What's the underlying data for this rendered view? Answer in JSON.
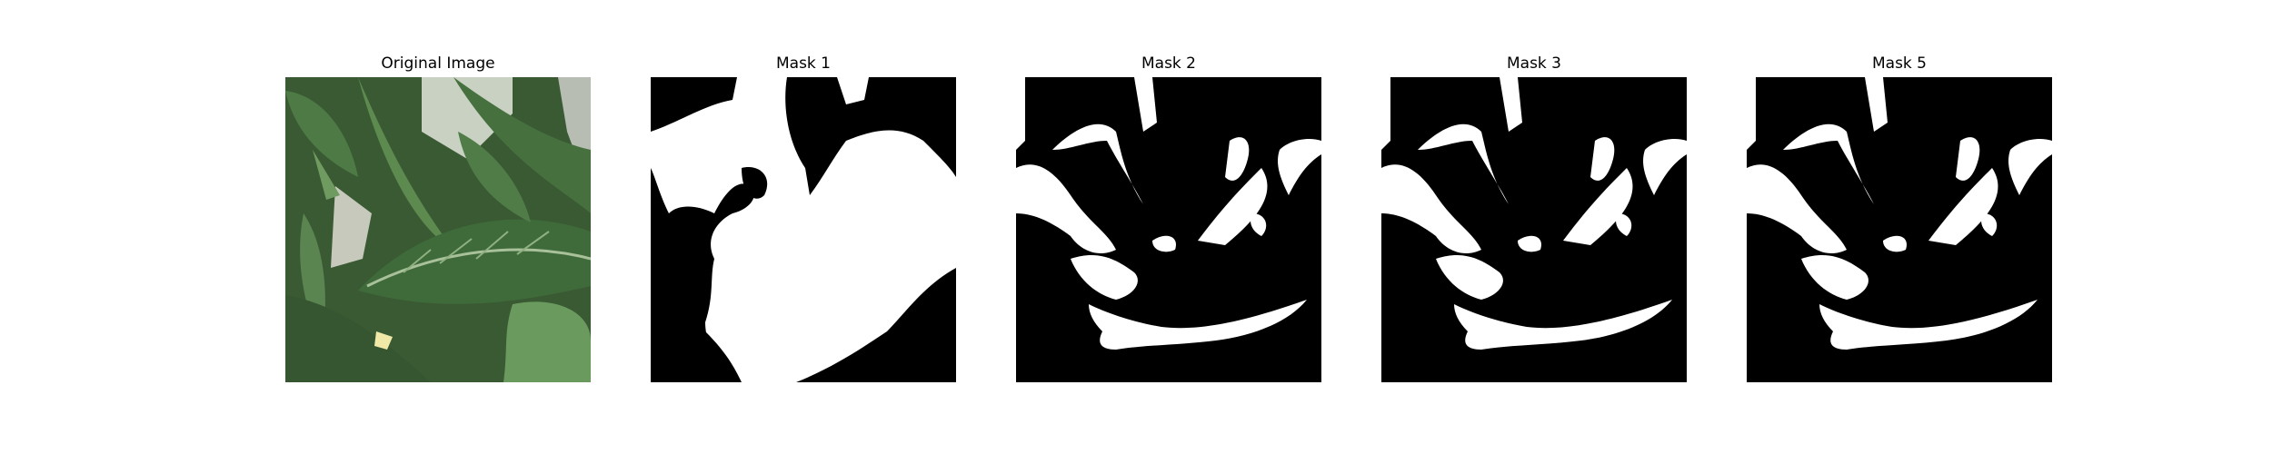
{
  "figure": {
    "panels": [
      {
        "title": "Original Image",
        "kind": "photo",
        "description_icon": "leaf-photo"
      },
      {
        "title": "Mask 1",
        "kind": "mask"
      },
      {
        "title": "Mask 2",
        "kind": "mask"
      },
      {
        "title": "Mask 3",
        "kind": "mask"
      },
      {
        "title": "Mask 5",
        "kind": "mask"
      }
    ]
  },
  "colors": {
    "background": "#ffffff",
    "mask_fg": "#ffffff",
    "mask_bg": "#000000",
    "leaf_dark": "#2f4f2c",
    "leaf_mid": "#4c7a44",
    "leaf_light": "#7fa070"
  }
}
